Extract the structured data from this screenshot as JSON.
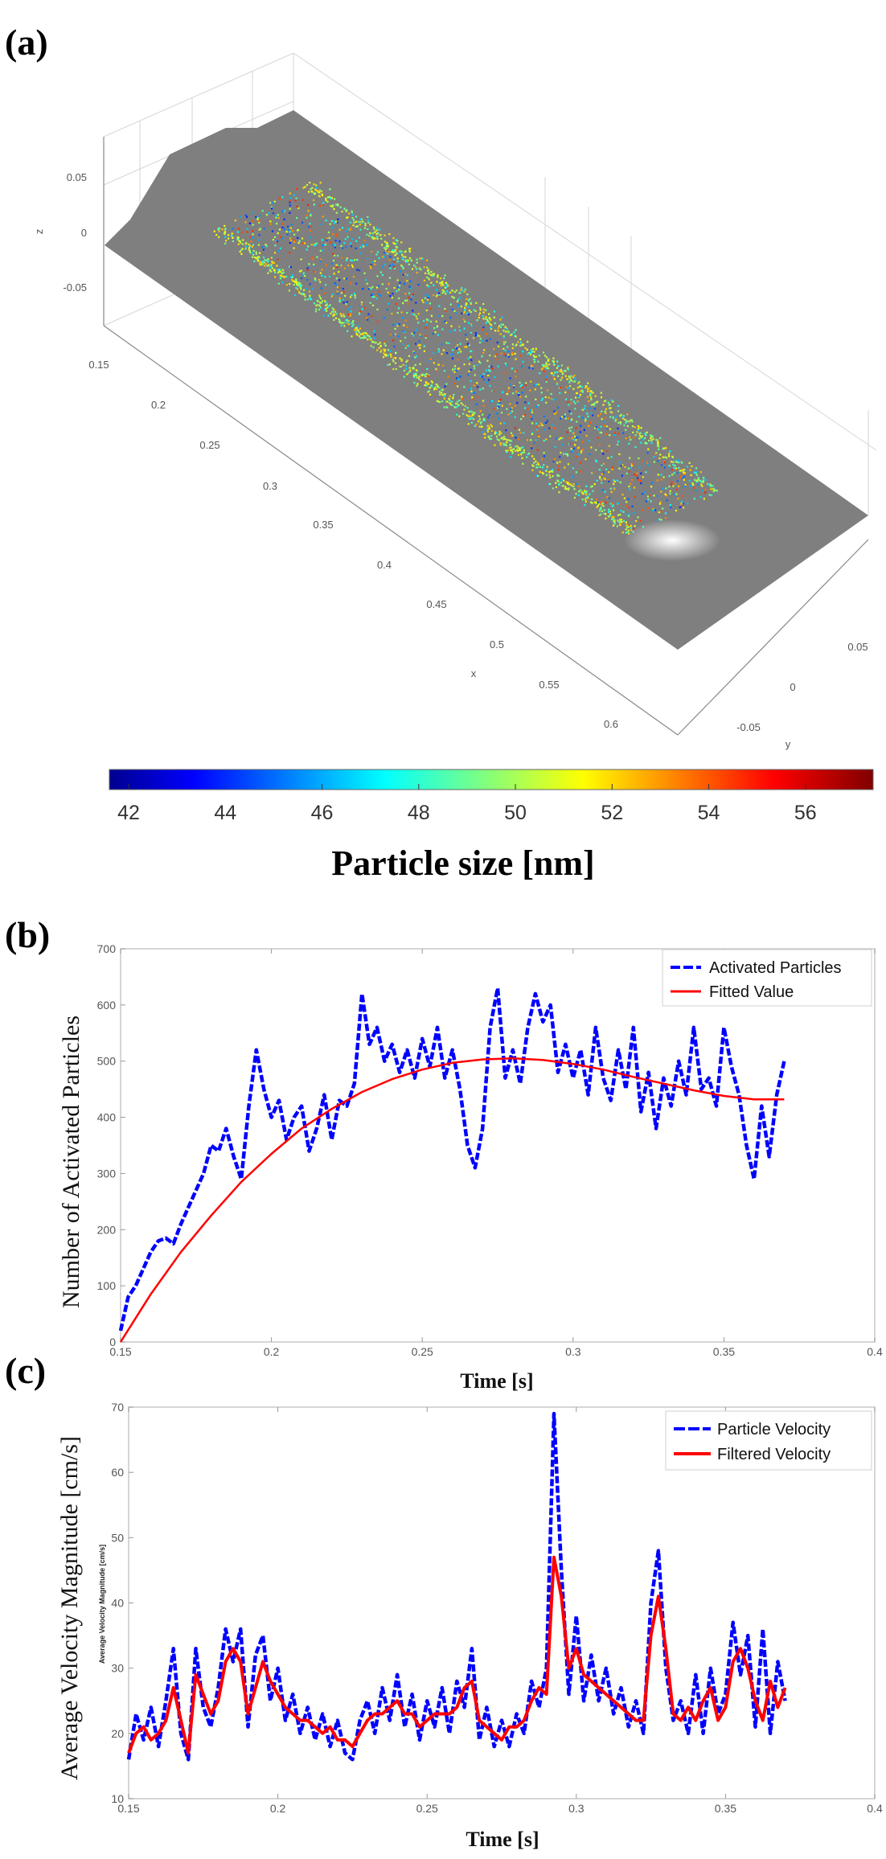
{
  "colors": {
    "plane": "#7f7f7f",
    "series_blue": "#0000ff",
    "series_red": "#ff0000"
  },
  "chart_data": [
    {
      "type": "scatter",
      "panel_label": "(a)",
      "view": "3d",
      "axes": {
        "x": {
          "label": "x",
          "ticks": [
            "0.15",
            "0.2",
            "0.25",
            "0.3",
            "0.35",
            "0.4",
            "0.45",
            "0.5",
            "0.55",
            "0.6"
          ]
        },
        "y": {
          "label": "y",
          "ticks": [
            "-0.05",
            "0",
            "0.05"
          ]
        },
        "z": {
          "label": "z",
          "ticks": [
            "0.05",
            "0",
            "-0.05"
          ]
        }
      },
      "colormap": "jet",
      "colorbar": {
        "range": [
          41.6,
          57.4
        ],
        "ticks": [
          "42",
          "44",
          "46",
          "48",
          "50",
          "52",
          "54",
          "56"
        ],
        "label": "Particle size [nm]"
      }
    },
    {
      "type": "line",
      "panel_label": "(b)",
      "xlabel": "Time [s]",
      "ylabel": "Number of Activated Particles",
      "xlim": [
        0.15,
        0.4
      ],
      "ylim": [
        0,
        700
      ],
      "xticks": [
        "0.15",
        "0.2",
        "0.25",
        "0.3",
        "0.35",
        "0.4"
      ],
      "yticks": [
        "0",
        "100",
        "200",
        "300",
        "400",
        "500",
        "600",
        "700"
      ],
      "legend": "top-right",
      "series": [
        {
          "name": "Activated Particles",
          "style": "dashed",
          "color": "#0000ff",
          "x_start": 0.15,
          "x_step": 0.0025,
          "values": [
            20,
            80,
            100,
            130,
            160,
            180,
            185,
            175,
            210,
            240,
            270,
            300,
            350,
            340,
            380,
            330,
            290,
            420,
            520,
            450,
            400,
            430,
            360,
            400,
            420,
            340,
            380,
            440,
            360,
            430,
            420,
            460,
            620,
            530,
            560,
            500,
            530,
            480,
            520,
            470,
            540,
            490,
            560,
            470,
            520,
            450,
            350,
            310,
            380,
            560,
            630,
            470,
            520,
            460,
            560,
            620,
            570,
            600,
            480,
            530,
            470,
            520,
            440,
            560,
            470,
            430,
            520,
            450,
            560,
            410,
            480,
            380,
            470,
            420,
            500,
            440,
            560,
            450,
            470,
            420,
            560,
            490,
            440,
            350,
            290,
            420,
            330,
            440,
            500
          ]
        },
        {
          "name": "Fitted Value",
          "style": "solid",
          "color": "#ff0000",
          "x_start": 0.15,
          "x_step": 0.01,
          "values": [
            0,
            85,
            160,
            225,
            285,
            335,
            380,
            415,
            445,
            468,
            485,
            497,
            503,
            505,
            502,
            495,
            485,
            472,
            460,
            448,
            438,
            432,
            432
          ]
        }
      ]
    },
    {
      "type": "line",
      "panel_label": "(c)",
      "xlabel": "Time [s]",
      "ylabel": "Average Velocity Magnitude [cm/s]",
      "ylabel_inner": "Average Velocity Magnitude [cm/s]",
      "xlim": [
        0.15,
        0.4
      ],
      "ylim": [
        10,
        70
      ],
      "xticks": [
        "0.15",
        "0.2",
        "0.25",
        "0.3",
        "0.35",
        "0.4"
      ],
      "yticks": [
        "10",
        "20",
        "30",
        "40",
        "50",
        "60",
        "70"
      ],
      "legend": "top-right",
      "series": [
        {
          "name": "Particle Velocity",
          "style": "dashed",
          "color": "#0000ff",
          "x_start": 0.15,
          "x_step": 0.0025,
          "values": [
            16,
            23,
            19,
            24,
            18,
            25,
            33,
            20,
            16,
            33,
            24,
            21,
            27,
            36,
            31,
            36,
            21,
            32,
            35,
            25,
            30,
            22,
            26,
            20,
            24,
            19,
            23,
            18,
            22,
            17,
            16,
            22,
            25,
            20,
            27,
            22,
            29,
            21,
            26,
            19,
            25,
            21,
            27,
            20,
            28,
            24,
            33,
            19,
            24,
            18,
            22,
            18,
            23,
            20,
            28,
            24,
            30,
            69,
            45,
            26,
            38,
            25,
            32,
            25,
            30,
            23,
            27,
            21,
            25,
            20,
            40,
            48,
            30,
            22,
            25,
            20,
            29,
            20,
            30,
            23,
            26,
            37,
            29,
            35,
            21,
            36,
            20,
            31,
            25
          ]
        },
        {
          "name": "Filtered Velocity",
          "style": "solid",
          "color": "#ff0000",
          "x_start": 0.15,
          "x_step": 0.0025,
          "values": [
            17,
            20,
            21,
            19,
            20,
            22,
            27,
            22,
            17,
            29,
            26,
            23,
            25,
            31,
            33,
            31,
            23,
            27,
            31,
            28,
            26,
            24,
            23,
            22,
            22,
            21,
            20,
            21,
            19,
            19,
            18,
            20,
            22,
            23,
            23,
            24,
            25,
            23,
            23,
            21,
            22,
            23,
            23,
            23,
            24,
            27,
            28,
            22,
            21,
            20,
            19,
            21,
            21,
            22,
            25,
            27,
            26,
            47,
            41,
            30,
            33,
            29,
            28,
            27,
            26,
            25,
            24,
            23,
            22,
            22,
            35,
            41,
            33,
            23,
            22,
            24,
            22,
            25,
            27,
            22,
            24,
            31,
            33,
            30,
            25,
            22,
            28,
            24,
            27
          ]
        }
      ]
    }
  ]
}
